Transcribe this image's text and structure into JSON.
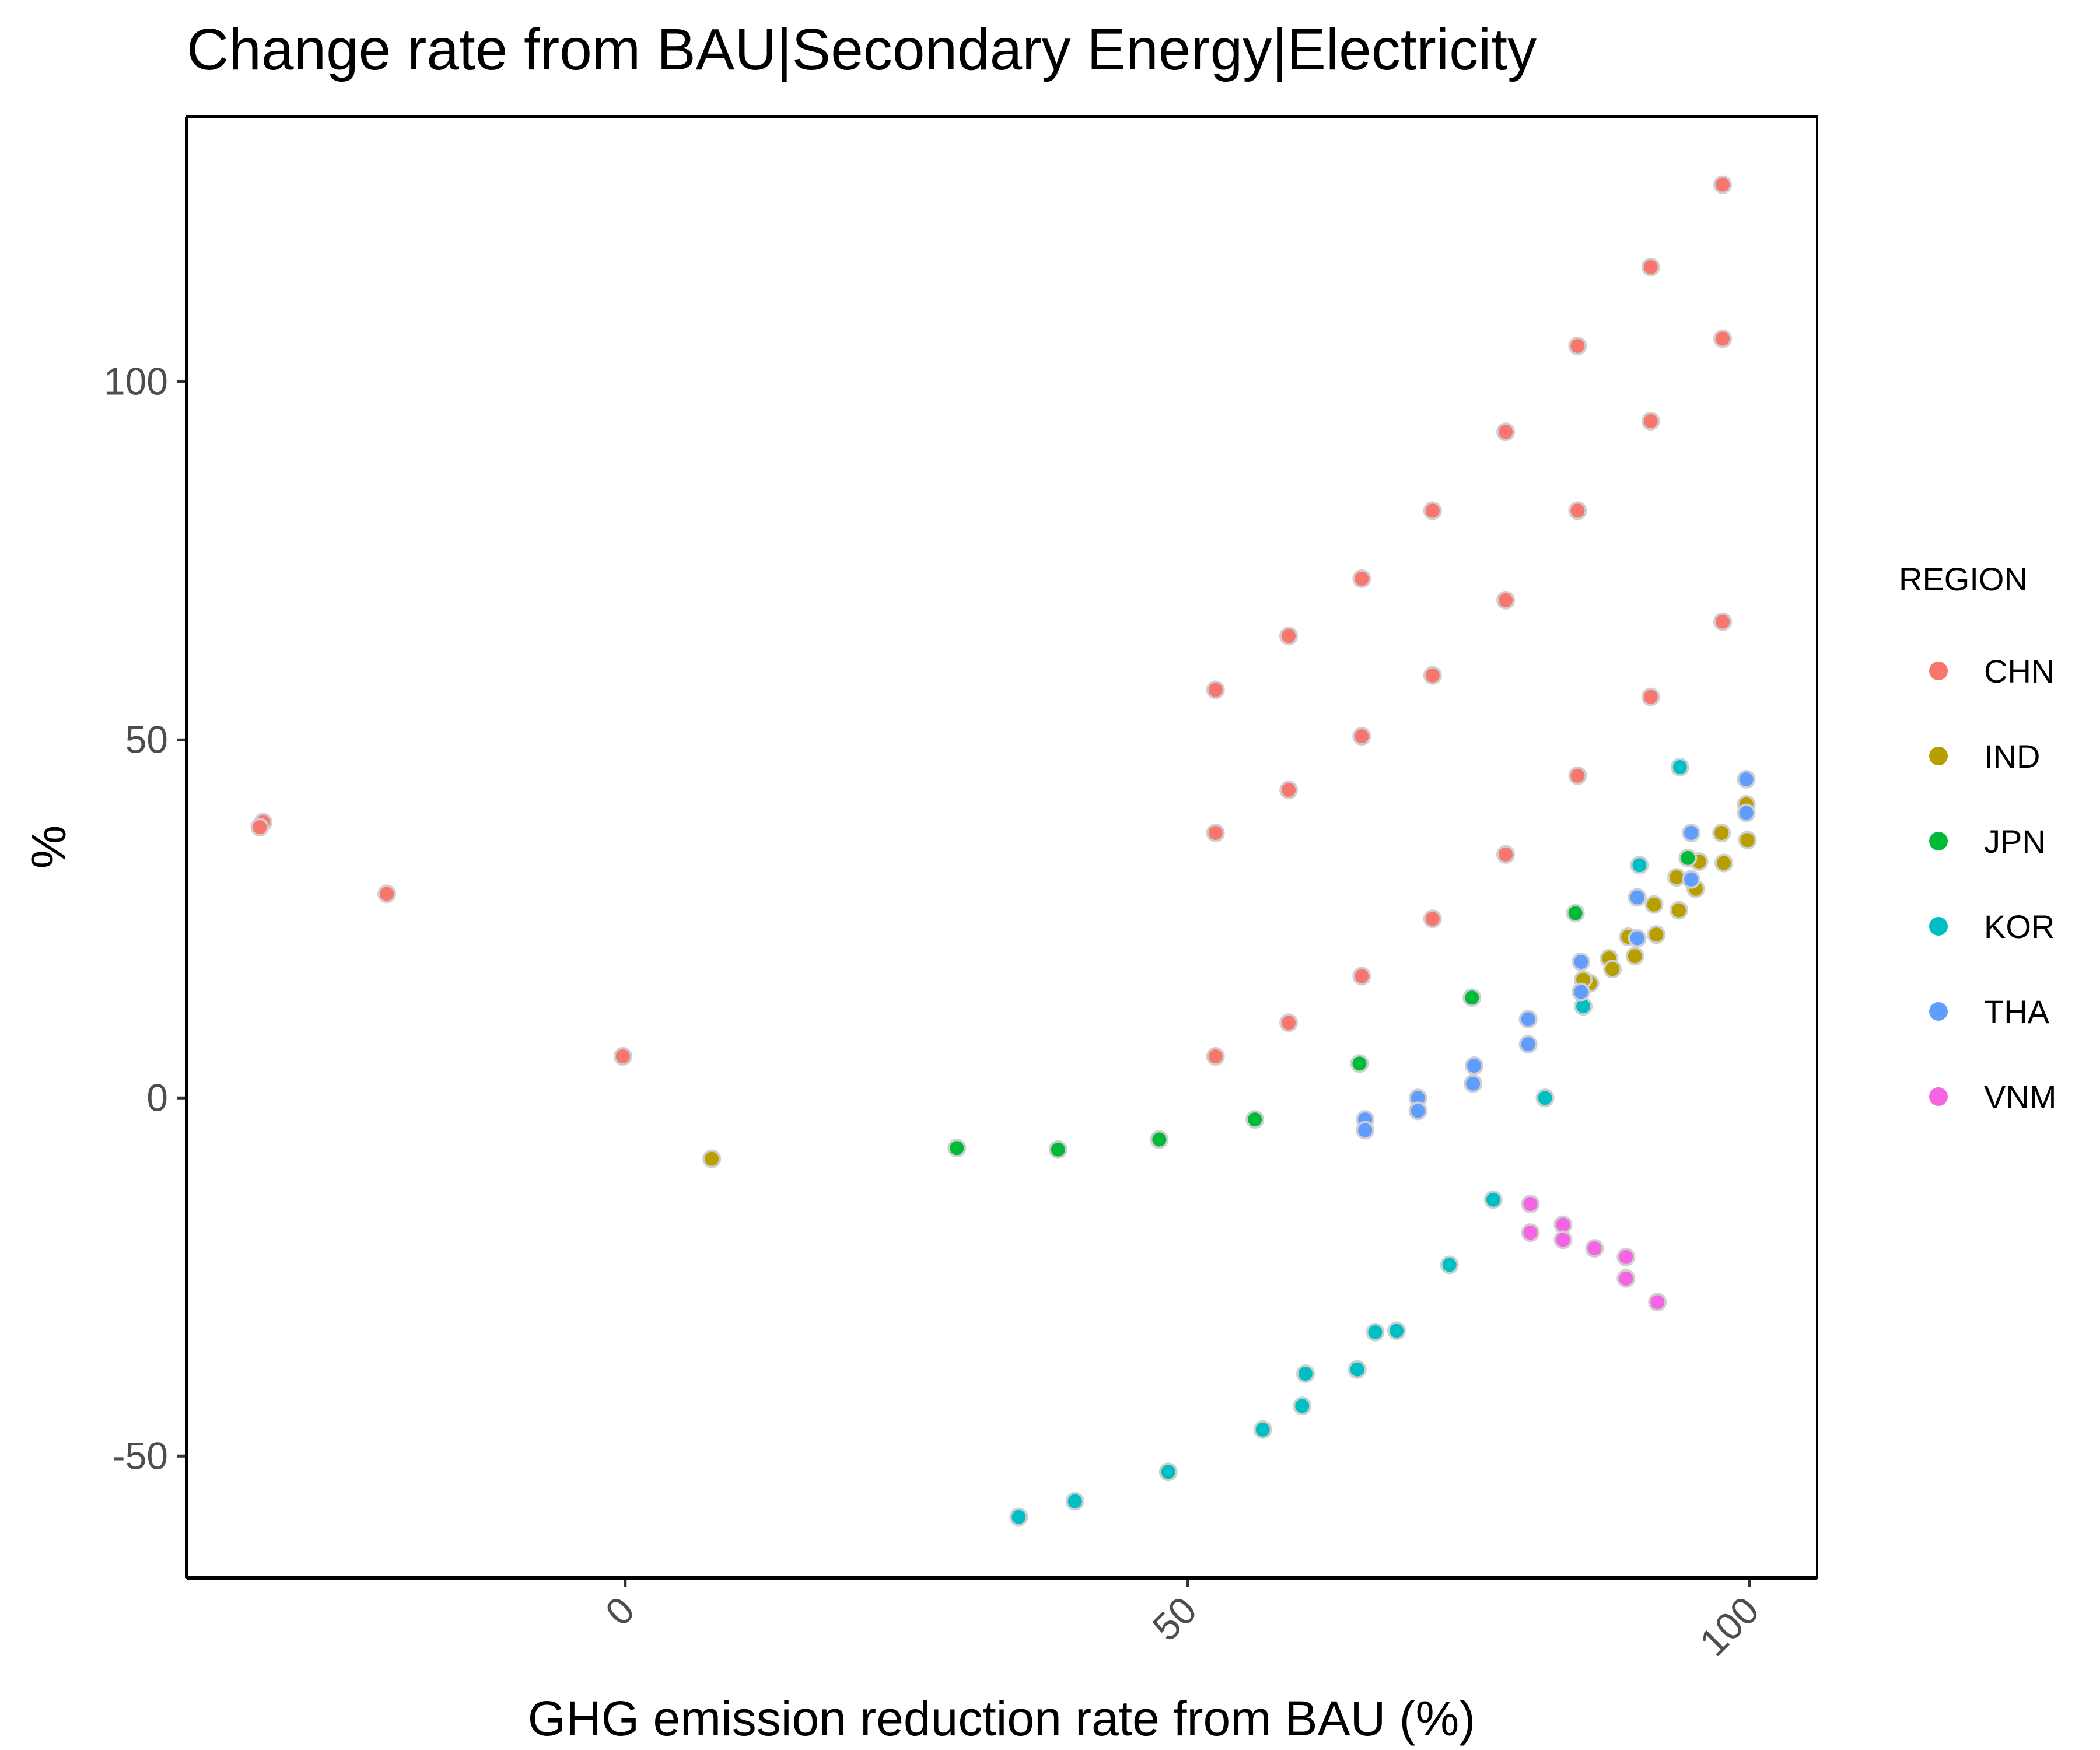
{
  "chart_data": {
    "type": "scatter",
    "title": "Change rate from BAU|Secondary Energy|Electricity",
    "xlabel": "GHG emission reduction rate from BAU (%)",
    "ylabel": "%",
    "xlim": [
      -39,
      106
    ],
    "ylim": [
      -67,
      137
    ],
    "x_ticks": [
      0,
      50,
      100
    ],
    "x_tick_labels": [
      "0",
      "50",
      "100"
    ],
    "y_ticks": [
      -50,
      0,
      50,
      100
    ],
    "y_tick_labels": [
      "-50",
      "0",
      "50",
      "100"
    ],
    "grid": false,
    "legend": {
      "title": "REGION",
      "position": "right"
    },
    "series": [
      {
        "name": "CHN",
        "color": "#F8766D",
        "points": [
          [
            -32.2,
            38.5
          ],
          [
            -32.5,
            37.8
          ],
          [
            -21.2,
            28.5
          ],
          [
            -0.2,
            5.8
          ],
          [
            52.5,
            57
          ],
          [
            52.5,
            37
          ],
          [
            52.5,
            5.8
          ],
          [
            59,
            64.5
          ],
          [
            59,
            43
          ],
          [
            59,
            10.5
          ],
          [
            65.5,
            72.5
          ],
          [
            65.5,
            50.5
          ],
          [
            65.5,
            17
          ],
          [
            71.8,
            82
          ],
          [
            71.8,
            59
          ],
          [
            71.8,
            25
          ],
          [
            78.3,
            93
          ],
          [
            78.3,
            69.5
          ],
          [
            78.3,
            34
          ],
          [
            84.7,
            105
          ],
          [
            84.7,
            82
          ],
          [
            84.7,
            45
          ],
          [
            91.2,
            116
          ],
          [
            91.2,
            94.5
          ],
          [
            91.2,
            56
          ],
          [
            97.6,
            127.5
          ],
          [
            97.6,
            106
          ],
          [
            97.6,
            66.5
          ]
        ]
      },
      {
        "name": "IND",
        "color": "#B79F00",
        "points": [
          [
            7.7,
            -8.5
          ],
          [
            87.5,
            19.5
          ],
          [
            89.2,
            22.5
          ],
          [
            89.8,
            19.8
          ],
          [
            91.5,
            27
          ],
          [
            91.7,
            22.8
          ],
          [
            93.5,
            30.8
          ],
          [
            93.7,
            26.2
          ],
          [
            95.2,
            29.2
          ],
          [
            95.5,
            33
          ],
          [
            97.5,
            37
          ],
          [
            97.7,
            32.8
          ],
          [
            99.7,
            41
          ],
          [
            99.8,
            36
          ],
          [
            85.8,
            16
          ],
          [
            87.8,
            18
          ],
          [
            85.2,
            16.5
          ]
        ]
      },
      {
        "name": "JPN",
        "color": "#00BA38",
        "points": [
          [
            29.5,
            -7
          ],
          [
            38.5,
            -7.2
          ],
          [
            47.5,
            -5.8
          ],
          [
            56,
            -3
          ],
          [
            65.3,
            4.8
          ],
          [
            75.3,
            14
          ],
          [
            84.5,
            25.8
          ],
          [
            94.5,
            33.5
          ]
        ]
      },
      {
        "name": "KOR",
        "color": "#00BFC4",
        "points": [
          [
            35,
            -58.5
          ],
          [
            40,
            -56.3
          ],
          [
            48.3,
            -52.2
          ],
          [
            56.7,
            -46.3
          ],
          [
            60.2,
            -43
          ],
          [
            60.5,
            -38.5
          ],
          [
            65.1,
            -37.9
          ],
          [
            66.7,
            -32.7
          ],
          [
            68.6,
            -32.5
          ],
          [
            73.3,
            -23.3
          ],
          [
            77.2,
            -14.2
          ],
          [
            81.8,
            0
          ],
          [
            85.2,
            12.8
          ],
          [
            90.2,
            32.5
          ],
          [
            93.8,
            46.2
          ]
        ]
      },
      {
        "name": "THA",
        "color": "#619CFF",
        "points": [
          [
            65.8,
            -3
          ],
          [
            65.8,
            -4.5
          ],
          [
            70.5,
            0
          ],
          [
            70.5,
            -1.8
          ],
          [
            75.5,
            4.5
          ],
          [
            75.4,
            2
          ],
          [
            80.3,
            11
          ],
          [
            80.3,
            7.5
          ],
          [
            85,
            19
          ],
          [
            85,
            14.8
          ],
          [
            90,
            28
          ],
          [
            90,
            22.3
          ],
          [
            94.8,
            37
          ],
          [
            94.8,
            30.5
          ],
          [
            99.7,
            44.5
          ],
          [
            99.7,
            39.8
          ]
        ]
      },
      {
        "name": "VNM",
        "color": "#F564E3",
        "points": [
          [
            80.5,
            -14.8
          ],
          [
            80.5,
            -18.8
          ],
          [
            83.4,
            -17.7
          ],
          [
            83.4,
            -19.8
          ],
          [
            86.2,
            -21
          ],
          [
            89,
            -22.2
          ],
          [
            89,
            -25.2
          ],
          [
            91.8,
            -28.5
          ]
        ]
      }
    ]
  }
}
